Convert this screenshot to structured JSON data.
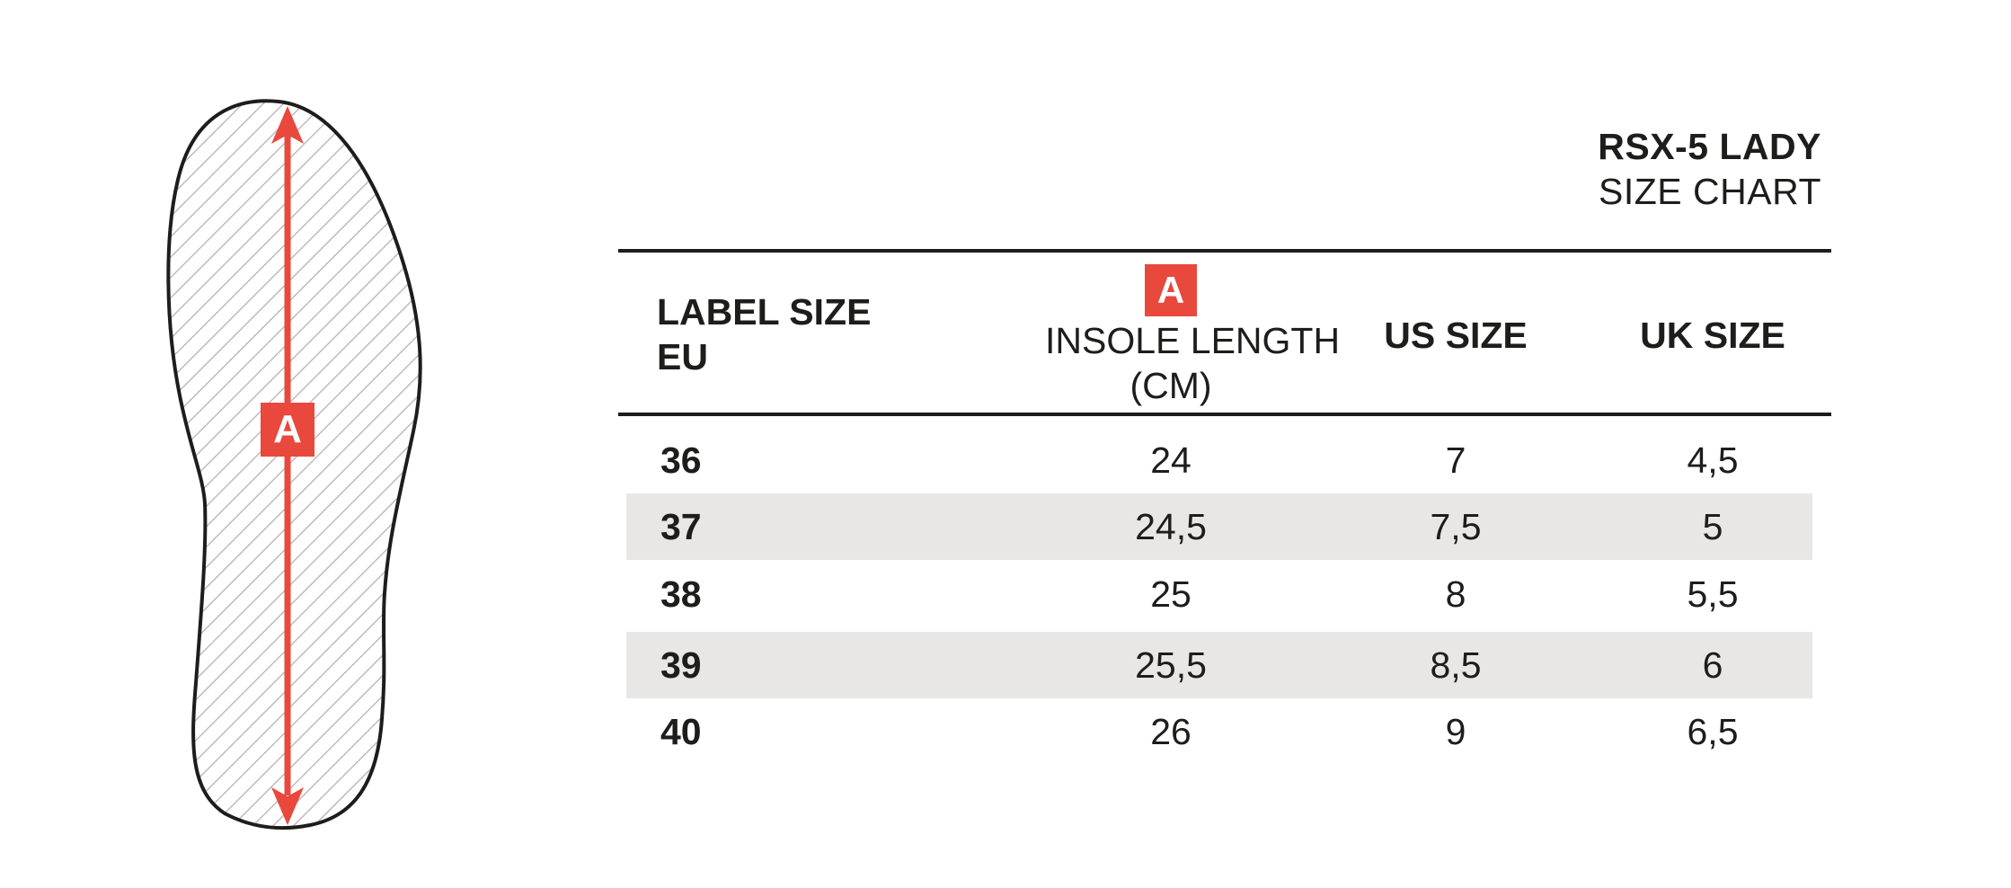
{
  "figure": {
    "marker_label": "A",
    "accent_color": "#e9483d",
    "outline_color": "#1d1d1b",
    "hatch_color": "#b8b0b4"
  },
  "title": {
    "main": "RSX-5 LADY",
    "sub": "SIZE CHART"
  },
  "table": {
    "headers": {
      "label_size_line1": "LABEL SIZE",
      "label_size_line2": "EU",
      "insole_badge": "A",
      "insole_line1": "INSOLE LENGTH",
      "insole_line2": "(CM)",
      "us": "US SIZE",
      "uk": "UK SIZE"
    },
    "rows": [
      {
        "eu": "36",
        "insole": "24",
        "us": "7",
        "uk": "4,5"
      },
      {
        "eu": "37",
        "insole": "24,5",
        "us": "7,5",
        "uk": "5"
      },
      {
        "eu": "38",
        "insole": "25",
        "us": "8",
        "uk": "5,5"
      },
      {
        "eu": "39",
        "insole": "25,5",
        "us": "8,5",
        "uk": "6"
      },
      {
        "eu": "40",
        "insole": "26",
        "us": "9",
        "uk": "6,5"
      }
    ],
    "shaded_row_color": "#e8e7e5"
  }
}
